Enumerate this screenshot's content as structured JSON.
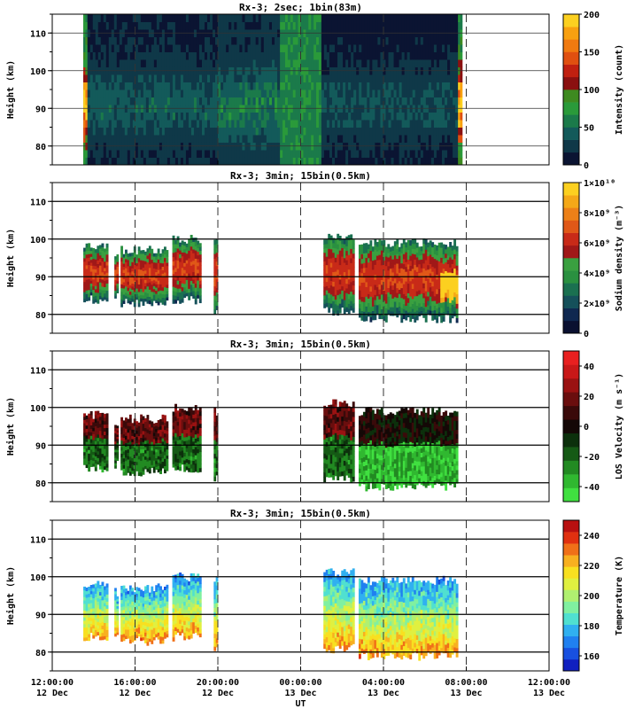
{
  "chart_data": [
    {
      "type": "heatmap",
      "title": "Rx-3;  2sec; 1bin(83m)",
      "ylabel": "Height (km)",
      "yticks": [
        80,
        90,
        100,
        110
      ],
      "ylim": [
        75,
        115
      ],
      "colorbar_label": "Intensity (count)",
      "colorbar_ticks": [
        "0",
        "50",
        "100",
        "150",
        "200"
      ],
      "colorbar_range": [
        0,
        200
      ],
      "colors": [
        "#0b1432",
        "#0f3848",
        "#135a5a",
        "#1b7a4a",
        "#2a9a3a",
        "#3e8a20",
        "#8a1010",
        "#c02010",
        "#e05010",
        "#f07a10",
        "#f8a010",
        "#fcd020"
      ],
      "segments": [
        {
          "x0": 13.5,
          "x1": 13.7,
          "value": 130
        },
        {
          "x0": 13.7,
          "x1": 20.0,
          "value": 30
        },
        {
          "x0": 20.0,
          "x1": 23.0,
          "value": 40
        },
        {
          "x0": 23.0,
          "x1": 25.0,
          "value": 60
        },
        {
          "x0": 25.0,
          "x1": 31.6,
          "value": 25
        },
        {
          "x0": 31.6,
          "x1": 31.8,
          "value": 140
        }
      ]
    },
    {
      "type": "heatmap",
      "title": "Rx-3; 3min; 15bin(0.5km)",
      "ylabel": "Height (km)",
      "yticks": [
        80,
        90,
        100,
        110
      ],
      "ylim": [
        75,
        115
      ],
      "colorbar_label": "Sodium density (m⁻³)",
      "colorbar_ticks": [
        "0",
        "2×10⁹",
        "4×10⁹",
        "6×10⁹",
        "8×10⁹",
        "1×10¹⁰"
      ],
      "colorbar_range": [
        0,
        10000000000.0
      ],
      "colors": [
        "#0a1030",
        "#0f2850",
        "#15505a",
        "#1a7050",
        "#2a9040",
        "#3aa040",
        "#a01818",
        "#c82a18",
        "#e05818",
        "#ec8018",
        "#f4a818",
        "#fcd020"
      ],
      "segments": [
        {
          "x0": 13.5,
          "x1": 14.7,
          "bottom": 84,
          "top": 98
        },
        {
          "x0": 15.0,
          "x1": 15.2,
          "bottom": 85,
          "top": 96
        },
        {
          "x0": 15.3,
          "x1": 17.6,
          "bottom": 83,
          "top": 97
        },
        {
          "x0": 17.8,
          "x1": 19.2,
          "bottom": 84,
          "top": 100
        },
        {
          "x0": 19.8,
          "x1": 20.0,
          "bottom": 81,
          "top": 99
        },
        {
          "x0": 25.1,
          "x1": 26.6,
          "bottom": 81,
          "top": 101
        },
        {
          "x0": 26.8,
          "x1": 31.6,
          "bottom": 79,
          "top": 99
        }
      ]
    },
    {
      "type": "heatmap",
      "title": "Rx-3; 3min; 15bin(0.5km)",
      "ylabel": "Height (km)",
      "yticks": [
        80,
        90,
        100,
        110
      ],
      "ylim": [
        75,
        115
      ],
      "colorbar_label": "LOS Velocity (m s⁻¹)",
      "colorbar_ticks": [
        "-40",
        "-20",
        "0",
        "20",
        "40"
      ],
      "colorbar_range": [
        -50,
        50
      ],
      "colors": [
        "#40e040",
        "#30b830",
        "#228a22",
        "#155a15",
        "#0c300c",
        "#140806",
        "#3a0a0a",
        "#6a0e0e",
        "#9a1212",
        "#c81818",
        "#e82020"
      ],
      "segments": [
        {
          "x0": 13.5,
          "x1": 14.7,
          "bottom": 84,
          "top": 98
        },
        {
          "x0": 15.0,
          "x1": 15.2,
          "bottom": 85,
          "top": 96
        },
        {
          "x0": 15.3,
          "x1": 17.6,
          "bottom": 83,
          "top": 97
        },
        {
          "x0": 17.8,
          "x1": 19.2,
          "bottom": 84,
          "top": 100
        },
        {
          "x0": 19.8,
          "x1": 20.0,
          "bottom": 81,
          "top": 99
        },
        {
          "x0": 25.1,
          "x1": 26.6,
          "bottom": 81,
          "top": 101
        },
        {
          "x0": 26.8,
          "x1": 31.6,
          "bottom": 79,
          "top": 99
        }
      ]
    },
    {
      "type": "heatmap",
      "title": "Rx-3; 3min; 15bin(0.5km)",
      "ylabel": "Height (km)",
      "yticks": [
        80,
        90,
        100,
        110
      ],
      "ylim": [
        75,
        115
      ],
      "colorbar_label": "Temperature (K)",
      "colorbar_ticks": [
        "160",
        "180",
        "200",
        "220",
        "240"
      ],
      "colorbar_range": [
        150,
        250
      ],
      "colors": [
        "#1020c0",
        "#1850e0",
        "#2080f0",
        "#30b0f0",
        "#50e0d0",
        "#80f0a0",
        "#b0f070",
        "#e0f040",
        "#f8e020",
        "#f8b020",
        "#f07018",
        "#e03010",
        "#b81010"
      ],
      "segments": [
        {
          "x0": 13.5,
          "x1": 14.7,
          "bottom": 84,
          "top": 98
        },
        {
          "x0": 15.0,
          "x1": 15.2,
          "bottom": 85,
          "top": 96
        },
        {
          "x0": 15.3,
          "x1": 17.6,
          "bottom": 83,
          "top": 97
        },
        {
          "x0": 17.8,
          "x1": 19.2,
          "bottom": 84,
          "top": 100
        },
        {
          "x0": 19.8,
          "x1": 20.0,
          "bottom": 81,
          "top": 99
        },
        {
          "x0": 25.1,
          "x1": 26.6,
          "bottom": 81,
          "top": 101
        },
        {
          "x0": 26.8,
          "x1": 31.6,
          "bottom": 79,
          "top": 99
        }
      ]
    }
  ],
  "x_axis": {
    "xlabel": "UT",
    "xlim": [
      12,
      36
    ],
    "ticks": [
      {
        "x": 12,
        "time": "12:00:00",
        "date": "12 Dec"
      },
      {
        "x": 16,
        "time": "16:00:00",
        "date": "12 Dec"
      },
      {
        "x": 20,
        "time": "20:00:00",
        "date": "12 Dec"
      },
      {
        "x": 24,
        "time": "00:00:00",
        "date": "13 Dec"
      },
      {
        "x": 28,
        "time": "04:00:00",
        "date": "13 Dec"
      },
      {
        "x": 32,
        "time": "08:00:00",
        "date": "13 Dec"
      },
      {
        "x": 36,
        "time": "12:00:00",
        "date": "13 Dec"
      }
    ]
  }
}
